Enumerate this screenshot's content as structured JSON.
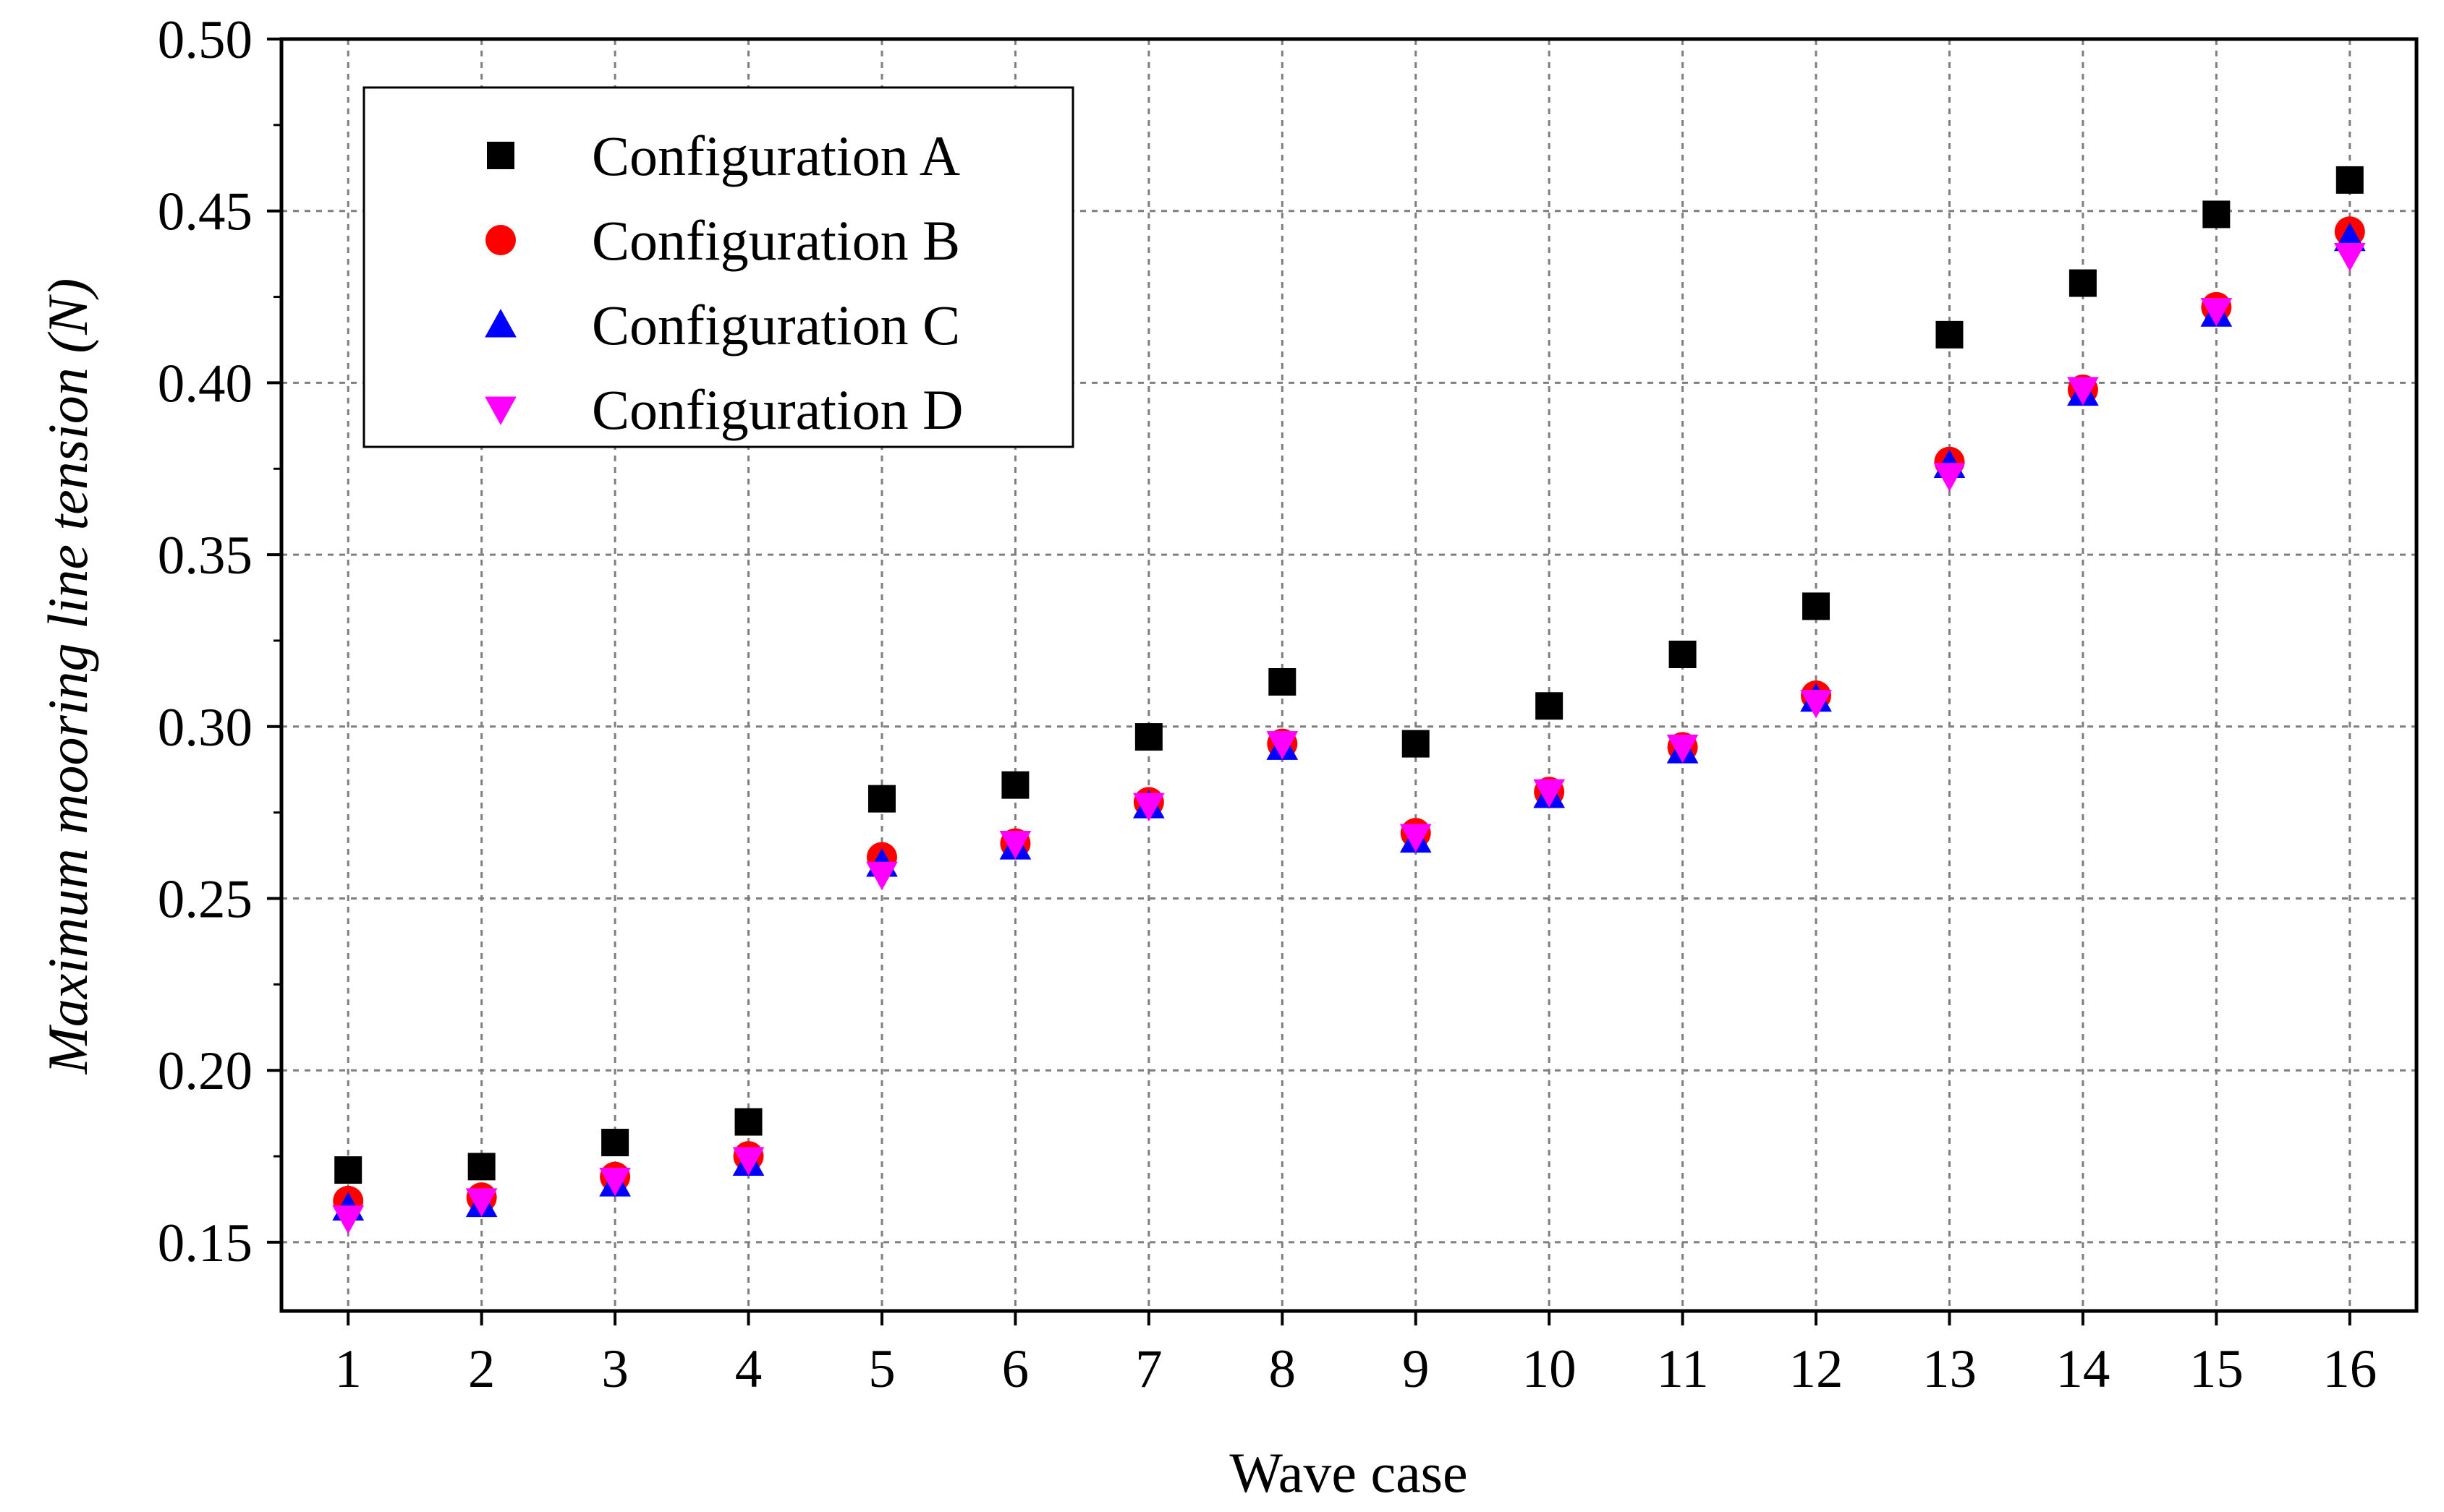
{
  "chart_data": {
    "type": "scatter",
    "title": "",
    "xlabel": "Wave case",
    "ylabel": "Maximum mooring line tension (N)",
    "x": [
      1,
      2,
      3,
      4,
      5,
      6,
      7,
      8,
      9,
      10,
      11,
      12,
      13,
      14,
      15,
      16
    ],
    "xticks": [
      "1",
      "2",
      "3",
      "4",
      "5",
      "6",
      "7",
      "8",
      "9",
      "10",
      "11",
      "12",
      "13",
      "14",
      "15",
      "16"
    ],
    "xlim": [
      0.5,
      16.5
    ],
    "ylim": [
      0.13,
      0.5
    ],
    "yticks": [
      "0.15",
      "0.20",
      "0.25",
      "0.30",
      "0.35",
      "0.40",
      "0.45",
      "0.50"
    ],
    "grid": true,
    "legend_position": "top-left",
    "series": [
      {
        "name": "Configuration A",
        "marker": "square",
        "color": "#000000",
        "values": [
          0.171,
          0.172,
          0.179,
          0.185,
          0.279,
          0.283,
          0.297,
          0.313,
          0.295,
          0.306,
          0.321,
          0.335,
          0.414,
          0.429,
          0.449,
          0.459
        ]
      },
      {
        "name": "Configuration B",
        "marker": "circle",
        "color": "#ff0000",
        "values": [
          0.162,
          0.163,
          0.169,
          0.175,
          0.262,
          0.266,
          0.278,
          0.295,
          0.269,
          0.281,
          0.294,
          0.309,
          0.377,
          0.398,
          0.422,
          0.444
        ]
      },
      {
        "name": "Configuration C",
        "marker": "triangle-up",
        "color": "#0000ff",
        "values": [
          0.16,
          0.161,
          0.167,
          0.173,
          0.26,
          0.265,
          0.277,
          0.294,
          0.267,
          0.28,
          0.293,
          0.308,
          0.376,
          0.397,
          0.42,
          0.442
        ]
      },
      {
        "name": "Configuration D",
        "marker": "triangle-down",
        "color": "#ff00ff",
        "values": [
          0.157,
          0.162,
          0.168,
          0.174,
          0.257,
          0.266,
          0.277,
          0.295,
          0.268,
          0.281,
          0.294,
          0.307,
          0.373,
          0.398,
          0.421,
          0.437
        ]
      }
    ]
  }
}
